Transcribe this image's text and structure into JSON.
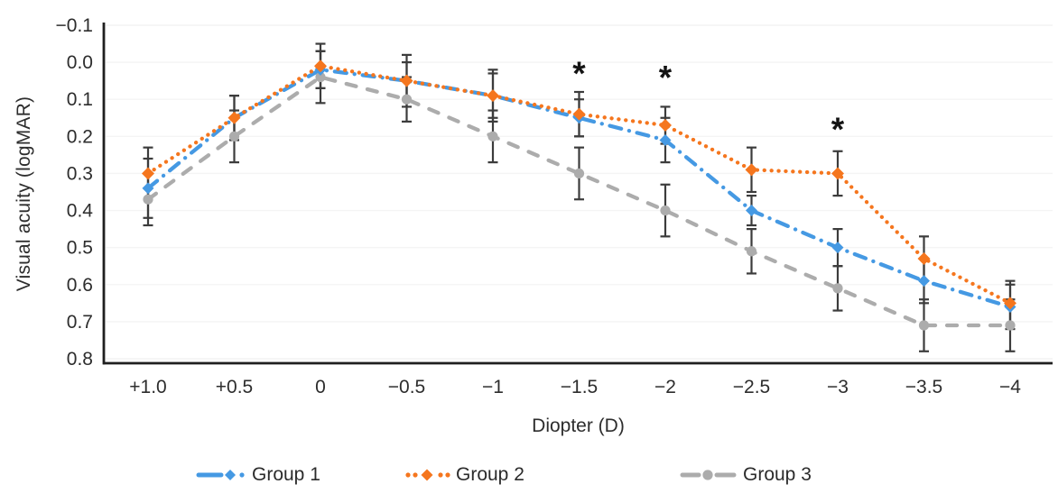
{
  "figure": {
    "background": "#ffffff",
    "text_color": "#2d2d2d"
  },
  "chart_data": {
    "type": "line",
    "title": "",
    "xlabel": "Diopter (D)",
    "ylabel": "Visual acuity (logMAR)",
    "x_tick_labels": [
      "+1.0",
      "+0.5",
      "0",
      "−0.5",
      "−1",
      "−1.5",
      "−2",
      "−2.5",
      "−3",
      "−3.5",
      "−4"
    ],
    "x_values": [
      1.0,
      0.5,
      0,
      -0.5,
      -1,
      -1.5,
      -2,
      -2.5,
      -3,
      -3.5,
      -4
    ],
    "y_tick_labels": [
      "−0.1",
      "0.0",
      "0.1",
      "0.2",
      "0.3",
      "0.4",
      "0.5",
      "0.6",
      "0.7",
      "0.8"
    ],
    "y_ticks": [
      -0.1,
      0.0,
      0.1,
      0.2,
      0.3,
      0.4,
      0.5,
      0.6,
      0.7,
      0.8
    ],
    "ylim": [
      -0.1,
      0.8
    ],
    "y_direction": "increases_downward",
    "grid": "faint-horizontal",
    "axis_color": "#1f1f1f",
    "grid_color": "#f4f4f4",
    "error_bar_color": "#3c3c3c",
    "series": [
      {
        "name": "Group 1",
        "color": "#4599e3",
        "line_style": "dash-dot",
        "marker": "diamond",
        "values": [
          0.34,
          0.15,
          0.02,
          0.05,
          0.09,
          0.15,
          0.21,
          0.4,
          0.5,
          0.59,
          0.66
        ],
        "errors": [
          0.08,
          0.06,
          0.05,
          0.05,
          0.06,
          0.05,
          0.06,
          0.04,
          0.05,
          0.06,
          0.06
        ]
      },
      {
        "name": "Group 2",
        "color": "#f5761e",
        "line_style": "dotted",
        "marker": "diamond",
        "values": [
          0.3,
          0.15,
          0.01,
          0.05,
          0.09,
          0.14,
          0.17,
          0.29,
          0.3,
          0.53,
          0.65
        ],
        "errors": [
          0.07,
          0.06,
          0.06,
          0.07,
          0.07,
          0.06,
          0.05,
          0.06,
          0.06,
          0.06,
          0.06
        ]
      },
      {
        "name": "Group 3",
        "color": "#acacac",
        "line_style": "dashed",
        "marker": "circle",
        "values": [
          0.37,
          0.2,
          0.04,
          0.1,
          0.2,
          0.3,
          0.4,
          0.51,
          0.61,
          0.71,
          0.71
        ],
        "errors": [
          0.07,
          0.07,
          0.07,
          0.06,
          0.07,
          0.07,
          0.07,
          0.06,
          0.06,
          0.07,
          0.07
        ]
      }
    ],
    "significance_markers": [
      {
        "symbol": "*",
        "at_x": "−1.5",
        "x_index": 5,
        "y": 0.01
      },
      {
        "symbol": "*",
        "at_x": "−2",
        "x_index": 6,
        "y": 0.02
      },
      {
        "symbol": "*",
        "at_x": "−3",
        "x_index": 8,
        "y": 0.16
      }
    ],
    "legend": {
      "position": "bottom",
      "entries": [
        "Group 1",
        "Group 2",
        "Group 3"
      ]
    }
  }
}
